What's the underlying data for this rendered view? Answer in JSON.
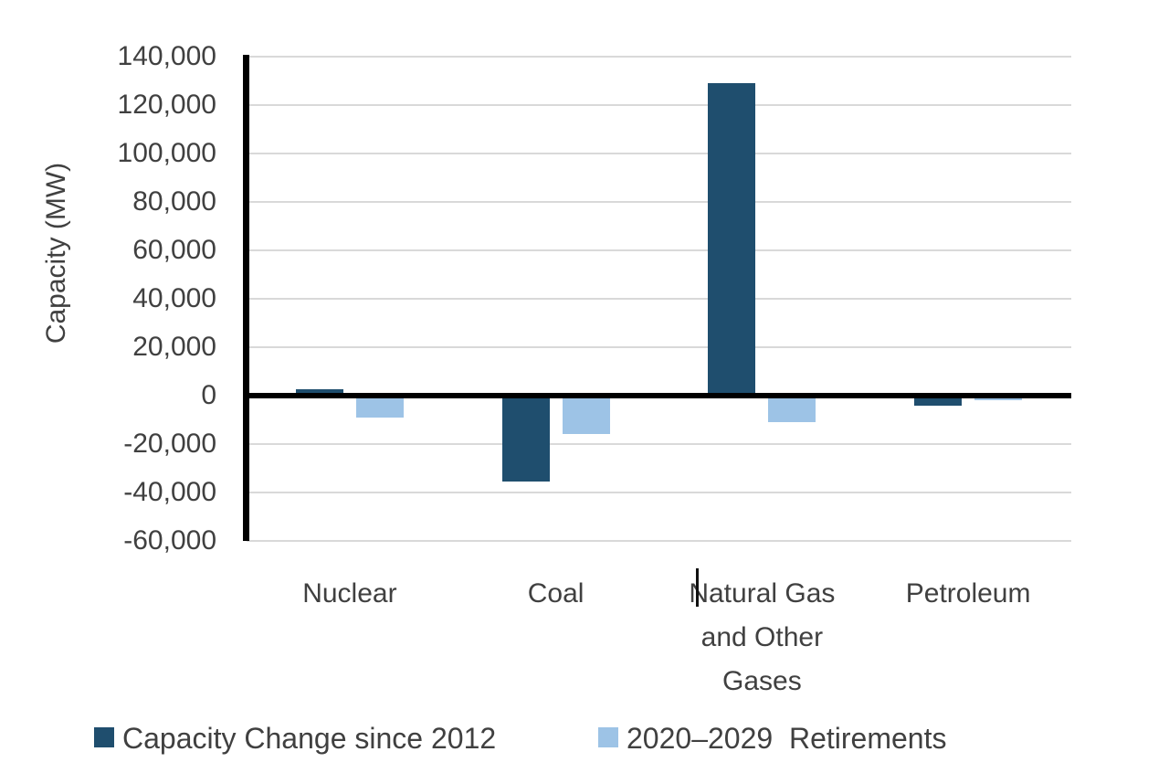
{
  "chart_data": {
    "type": "bar",
    "title": "",
    "xlabel": "",
    "ylabel": "Capacity (MW)",
    "ylim": [
      -60000,
      140000
    ],
    "ytick_step": 20000,
    "ytick_values": [
      140000,
      120000,
      100000,
      80000,
      60000,
      40000,
      20000,
      0,
      -20000,
      -40000,
      -60000
    ],
    "ytick_labels": [
      "140,000",
      "120,000",
      "100,000",
      "80,000",
      "60,000",
      "40,000",
      "20,000",
      "0",
      "-20,000",
      "-40,000",
      "-60,000"
    ],
    "grid": true,
    "legend_position": "bottom",
    "categories": [
      "Nuclear",
      "Coal",
      "Natural Gas and Other Gases",
      "Petroleum"
    ],
    "category_label_lines": [
      [
        "Nuclear"
      ],
      [
        "Coal"
      ],
      [
        "Natural Gas",
        "and Other",
        "Gases"
      ],
      [
        "Petroleum"
      ]
    ],
    "series": [
      {
        "name": "Capacity Change since 2012",
        "color": "#1f4e6e",
        "values": [
          2500,
          -35500,
          129000,
          -4000
        ]
      },
      {
        "name": "2020–2029  Retirements",
        "color": "#9dc3e6",
        "values": [
          -9000,
          -16000,
          -11000,
          -2000
        ]
      }
    ]
  },
  "colors": {
    "grid": "#d9d9d9",
    "axis": "#000000",
    "text": "#404040",
    "background": "#ffffff"
  }
}
